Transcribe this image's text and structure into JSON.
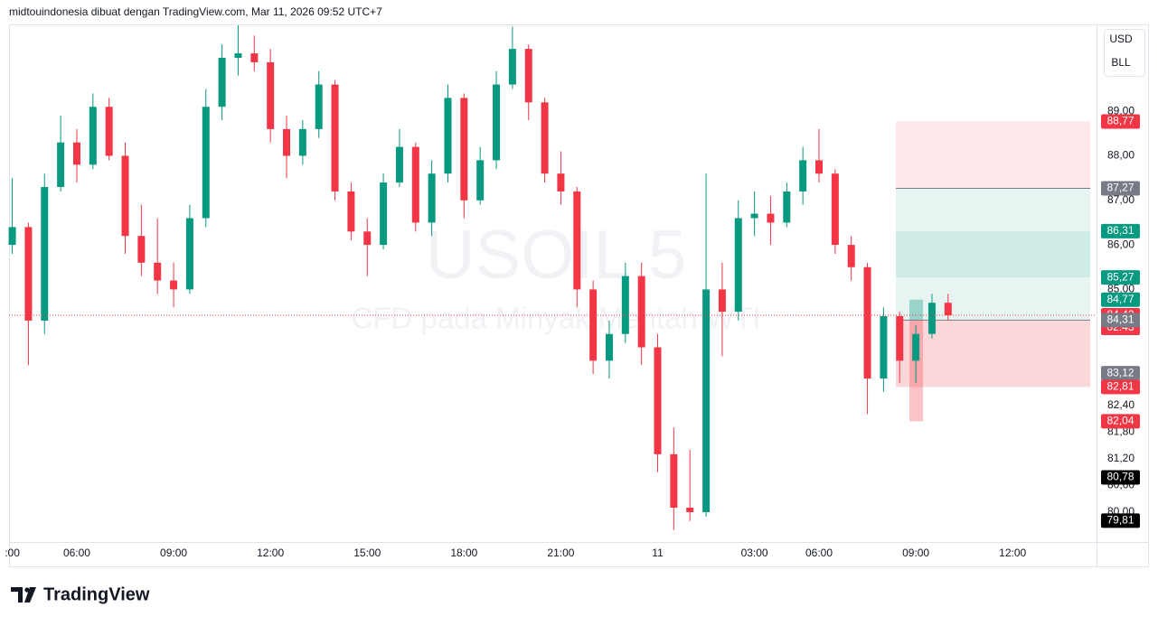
{
  "header": "midtouindonesia dibuat dengan TradingView.com, Mar 11, 2026 09:52 UTC+7",
  "currency_buttons": [
    "USD",
    "BLL"
  ],
  "brand": "TradingView",
  "chart_data": {
    "type": "candlestick",
    "title": "USOIL 5",
    "subtitle": "CFD pada Minyak Mentah WTI",
    "up_color": "#089981",
    "down_color": "#f23645",
    "x": [
      4.0,
      4.5,
      5.0,
      5.5,
      6.0,
      6.5,
      7.0,
      7.5,
      8.0,
      8.5,
      9.0,
      9.5,
      10.0,
      10.5,
      11.0,
      11.5,
      12.0,
      12.5,
      13.0,
      13.5,
      14.0,
      14.5,
      15.0,
      15.5,
      16.0,
      16.5,
      17.0,
      17.5,
      18.0,
      18.5,
      19.0,
      19.5,
      20.0,
      20.5,
      21.0,
      21.5,
      22.0,
      22.5,
      23.0,
      23.5,
      24.0,
      24.5,
      25.0,
      25.5,
      26.0,
      26.5,
      27.0,
      27.5,
      28.0,
      28.5,
      29.0,
      29.5,
      30.0,
      30.5,
      31.0,
      31.5,
      32.0,
      32.5,
      33.0
    ],
    "open": [
      86.0,
      86.4,
      84.3,
      87.3,
      88.3,
      87.8,
      89.1,
      88.0,
      86.2,
      85.6,
      85.2,
      85.0,
      86.6,
      89.1,
      90.2,
      90.3,
      90.1,
      88.6,
      88.0,
      88.6,
      89.6,
      87.2,
      86.3,
      86.0,
      87.4,
      88.2,
      86.5,
      87.6,
      89.3,
      87.0,
      87.9,
      89.6,
      90.4,
      89.2,
      87.6,
      87.2,
      85.0,
      83.4,
      84.0,
      85.3,
      83.7,
      81.3,
      80.1,
      80.0,
      85.0,
      84.5,
      86.6,
      86.7,
      86.5,
      87.2,
      87.9,
      87.6,
      86.0,
      85.5,
      83.0,
      84.4,
      83.4,
      84.0,
      84.7
    ],
    "high": [
      87.5,
      86.5,
      87.6,
      88.9,
      88.6,
      89.4,
      89.3,
      88.3,
      86.9,
      86.6,
      85.6,
      86.9,
      89.5,
      90.5,
      90.93,
      90.7,
      90.4,
      88.9,
      88.8,
      89.9,
      89.7,
      87.4,
      86.6,
      87.6,
      88.6,
      88.3,
      87.9,
      89.6,
      89.4,
      88.2,
      89.9,
      90.9,
      90.5,
      89.3,
      88.1,
      87.3,
      85.2,
      84.3,
      85.6,
      85.6,
      84.0,
      81.9,
      81.4,
      87.6,
      85.6,
      87.0,
      87.2,
      87.1,
      87.4,
      88.2,
      88.6,
      87.7,
      86.2,
      85.6,
      84.6,
      84.5,
      84.2,
      84.9,
      84.9
    ],
    "low": [
      85.8,
      83.3,
      84.0,
      87.2,
      87.4,
      87.7,
      87.9,
      85.8,
      85.3,
      84.9,
      84.6,
      84.9,
      86.4,
      88.8,
      89.8,
      89.9,
      88.3,
      87.5,
      87.8,
      88.4,
      87.0,
      86.1,
      85.3,
      85.9,
      87.3,
      86.3,
      86.2,
      87.4,
      86.6,
      86.9,
      87.7,
      89.5,
      88.8,
      87.4,
      86.9,
      84.6,
      83.1,
      83.0,
      83.8,
      83.3,
      80.9,
      79.6,
      79.8,
      79.9,
      83.5,
      84.3,
      86.2,
      86.0,
      86.4,
      86.9,
      87.4,
      85.8,
      85.2,
      82.2,
      82.7,
      82.9,
      82.9,
      83.9,
      84.3
    ],
    "close": [
      86.4,
      84.3,
      87.3,
      88.3,
      87.8,
      89.1,
      88.0,
      86.2,
      85.6,
      85.2,
      85.0,
      86.6,
      89.1,
      90.2,
      90.3,
      90.1,
      88.6,
      88.0,
      88.6,
      89.6,
      87.2,
      86.3,
      86.0,
      87.4,
      88.2,
      86.5,
      87.6,
      89.3,
      87.0,
      87.9,
      89.6,
      90.4,
      89.2,
      87.6,
      87.2,
      85.0,
      83.4,
      84.0,
      85.3,
      83.7,
      81.3,
      80.1,
      80.0,
      85.0,
      84.5,
      86.6,
      86.7,
      86.5,
      87.2,
      87.9,
      87.6,
      86.0,
      85.5,
      83.0,
      84.4,
      83.4,
      84.0,
      84.7,
      84.42
    ],
    "xlim": [
      3.9,
      37.6
    ],
    "xticks": [
      {
        "value": 4,
        "label": ":00"
      },
      {
        "value": 6,
        "label": "06:00"
      },
      {
        "value": 9,
        "label": "09:00"
      },
      {
        "value": 12,
        "label": "12:00"
      },
      {
        "value": 15,
        "label": "15:00"
      },
      {
        "value": 18,
        "label": "18:00"
      },
      {
        "value": 21,
        "label": "21:00"
      },
      {
        "value": 24,
        "label": "11"
      },
      {
        "value": 27,
        "label": "03:00"
      },
      {
        "value": 29,
        "label": "06:00"
      },
      {
        "value": 32,
        "label": "09:00"
      },
      {
        "value": 35,
        "label": "12:00"
      }
    ],
    "ylim": [
      79.33,
      90.93
    ],
    "yticks": [
      {
        "value": 89,
        "label": "89,00"
      },
      {
        "value": 88,
        "label": "88,00"
      },
      {
        "value": 87,
        "label": "87,00"
      },
      {
        "value": 86,
        "label": "86,00"
      },
      {
        "value": 85,
        "label": "85,00"
      },
      {
        "value": 82.4,
        "label": "82,40"
      },
      {
        "value": 81.8,
        "label": "81,80"
      },
      {
        "value": 81.2,
        "label": "81,20"
      },
      {
        "value": 80.6,
        "label": "80,60"
      },
      {
        "value": 80,
        "label": "80,00"
      }
    ],
    "grid": false,
    "price_labels": [
      {
        "value": 88.77,
        "label": "88,77",
        "color": "#f23645"
      },
      {
        "value": 87.27,
        "label": "87,27",
        "color": "#787b86"
      },
      {
        "value": 86.31,
        "label": "86,31",
        "color": "#089981"
      },
      {
        "value": 85.27,
        "label": "85,27",
        "color": "#089981"
      },
      {
        "value": 84.77,
        "label": "84,77",
        "color": "#089981"
      },
      {
        "value": 84.42,
        "label": "84,42",
        "color": "#f23645"
      },
      {
        "value": 84.31,
        "label": "84,31",
        "color": "#787b86"
      },
      {
        "value": 83.12,
        "label": "83,12",
        "color": "#787b86"
      },
      {
        "value": 82.81,
        "label": "82,81",
        "color": "#f23645"
      },
      {
        "value": 82.04,
        "label": "82,04",
        "color": "#f23645"
      },
      {
        "value": 80.78,
        "label": "80,78",
        "color": "#000000"
      },
      {
        "value": 79.81,
        "label": "79,81",
        "color": "#000000"
      }
    ],
    "countdown": "02:43"
  }
}
